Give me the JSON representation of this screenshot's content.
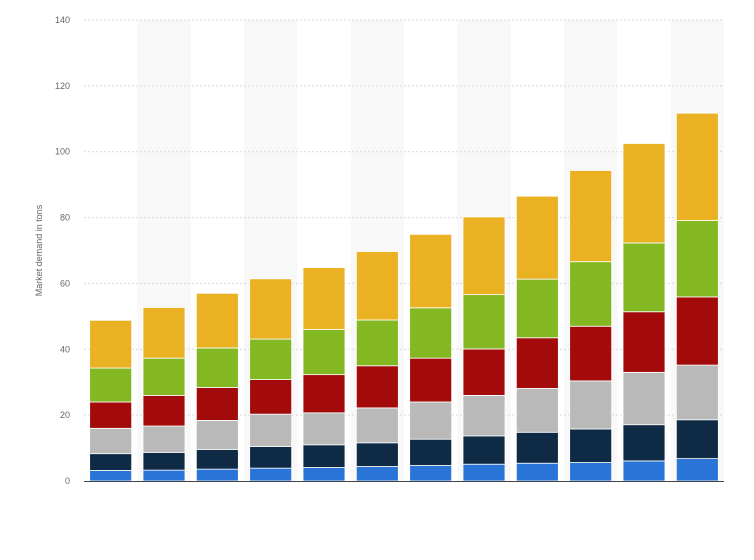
{
  "chart_data": {
    "type": "bar",
    "stacked": true,
    "title": "",
    "xlabel": "",
    "ylabel": "Market demand in tons",
    "ylim": [
      0,
      140
    ],
    "yticks": [
      0,
      20,
      40,
      60,
      80,
      100,
      120,
      140
    ],
    "categories": [
      "",
      "",
      "",
      "",
      "",
      "",
      "",
      "",
      "",
      "",
      "",
      ""
    ],
    "grid": true,
    "legend": "none",
    "series": [
      {
        "color": "#2a74d8",
        "values": [
          3.2,
          3.3,
          3.6,
          3.9,
          4.1,
          4.4,
          4.7,
          5.1,
          5.4,
          5.6,
          6.1,
          6.8
        ]
      },
      {
        "color": "#0f2a45",
        "values": [
          5.1,
          5.4,
          6.0,
          6.6,
          6.9,
          7.2,
          8.0,
          8.6,
          9.4,
          10.2,
          11.0,
          11.8
        ]
      },
      {
        "color": "#b9b9b9",
        "values": [
          7.7,
          8.0,
          8.8,
          9.8,
          9.7,
          10.6,
          11.3,
          12.3,
          13.3,
          14.6,
          15.9,
          16.6
        ]
      },
      {
        "color": "#a30a0a",
        "values": [
          8.0,
          9.3,
          10.0,
          10.5,
          11.6,
          12.8,
          13.3,
          14.1,
          15.4,
          16.6,
          18.4,
          20.7
        ]
      },
      {
        "color": "#84b823",
        "values": [
          10.3,
          11.3,
          12.0,
          12.3,
          13.7,
          13.9,
          15.3,
          16.5,
          17.8,
          19.6,
          20.9,
          23.2
        ]
      },
      {
        "color": "#eab123",
        "values": [
          14.5,
          15.4,
          16.6,
          18.3,
          18.8,
          20.8,
          22.3,
          23.6,
          25.2,
          27.7,
          30.2,
          32.6
        ]
      }
    ]
  }
}
